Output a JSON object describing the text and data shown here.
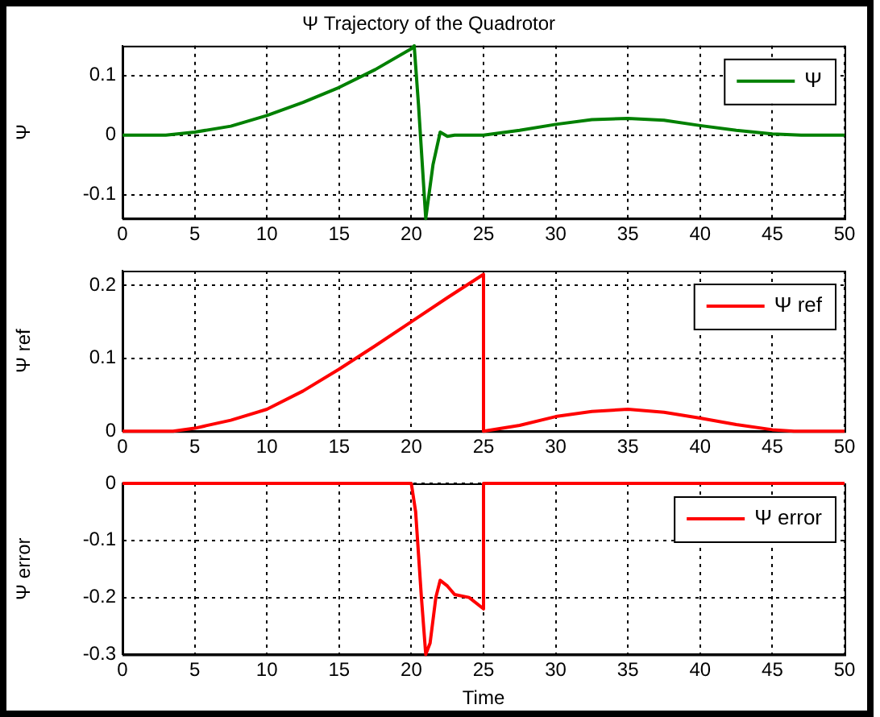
{
  "chart_data": [
    {
      "type": "line",
      "title": "Ψ Trajectory of the Quadrotor",
      "ylabel": "Ψ",
      "xlim": [
        0,
        50
      ],
      "xticks": [
        0,
        5,
        10,
        15,
        20,
        25,
        30,
        35,
        40,
        45,
        50
      ],
      "ylim": [
        -0.14,
        0.15
      ],
      "yticks": [
        -0.1,
        0,
        0.1
      ],
      "grid": true,
      "legend": "top right",
      "marker": "none",
      "line_style": "solid",
      "series": [
        {
          "name": "Ψ",
          "color": "#008000",
          "x": [
            0,
            3,
            5,
            7.5,
            10,
            12.5,
            15,
            17.5,
            20,
            20.2,
            20.5,
            21,
            21.5,
            22,
            22.5,
            23,
            25,
            27.5,
            30,
            32.5,
            35,
            37.5,
            40,
            42.5,
            45,
            47,
            50
          ],
          "values": [
            0,
            0,
            0.005,
            0.015,
            0.033,
            0.055,
            0.08,
            0.11,
            0.145,
            0.15,
            0.05,
            -0.14,
            -0.05,
            0.005,
            -0.002,
            0,
            0,
            0.008,
            0.018,
            0.026,
            0.028,
            0.025,
            0.016,
            0.008,
            0.002,
            0,
            0
          ]
        }
      ]
    },
    {
      "type": "line",
      "ylabel": "Ψ ref",
      "xlim": [
        0,
        50
      ],
      "xticks": [
        0,
        5,
        10,
        15,
        20,
        25,
        30,
        35,
        40,
        45,
        50
      ],
      "ylim": [
        0,
        0.22
      ],
      "yticks": [
        0,
        0.1,
        0.2
      ],
      "grid": true,
      "legend": "top right",
      "marker": "none",
      "line_style": "solid",
      "series": [
        {
          "name": "Ψ ref",
          "color": "#ff0000",
          "x": [
            0,
            3.5,
            5,
            7.5,
            10,
            12.5,
            15,
            17.5,
            20,
            22.5,
            25,
            25,
            27.5,
            30,
            32.5,
            35,
            37.5,
            40,
            42.5,
            45,
            46.5,
            50
          ],
          "values": [
            0,
            0,
            0.004,
            0.015,
            0.03,
            0.055,
            0.085,
            0.117,
            0.15,
            0.183,
            0.215,
            0,
            0.008,
            0.02,
            0.027,
            0.03,
            0.026,
            0.018,
            0.009,
            0.002,
            0,
            0
          ]
        }
      ]
    },
    {
      "type": "line",
      "xlabel": "Time",
      "ylabel": "Ψ error",
      "xlim": [
        0,
        50
      ],
      "xticks": [
        0,
        5,
        10,
        15,
        20,
        25,
        30,
        35,
        40,
        45,
        50
      ],
      "ylim": [
        -0.3,
        0
      ],
      "yticks": [
        -0.3,
        -0.2,
        -0.1,
        0
      ],
      "grid": true,
      "legend": "top right",
      "marker": "none",
      "line_style": "solid",
      "series": [
        {
          "name": "Ψ error",
          "color": "#ff0000",
          "x": [
            0,
            20,
            20.3,
            20.7,
            21,
            21.3,
            21.7,
            22,
            22.5,
            23,
            24,
            25,
            25,
            50
          ],
          "values": [
            0,
            0,
            -0.05,
            -0.2,
            -0.3,
            -0.28,
            -0.2,
            -0.17,
            -0.18,
            -0.195,
            -0.2,
            -0.22,
            0,
            0
          ]
        }
      ]
    }
  ]
}
